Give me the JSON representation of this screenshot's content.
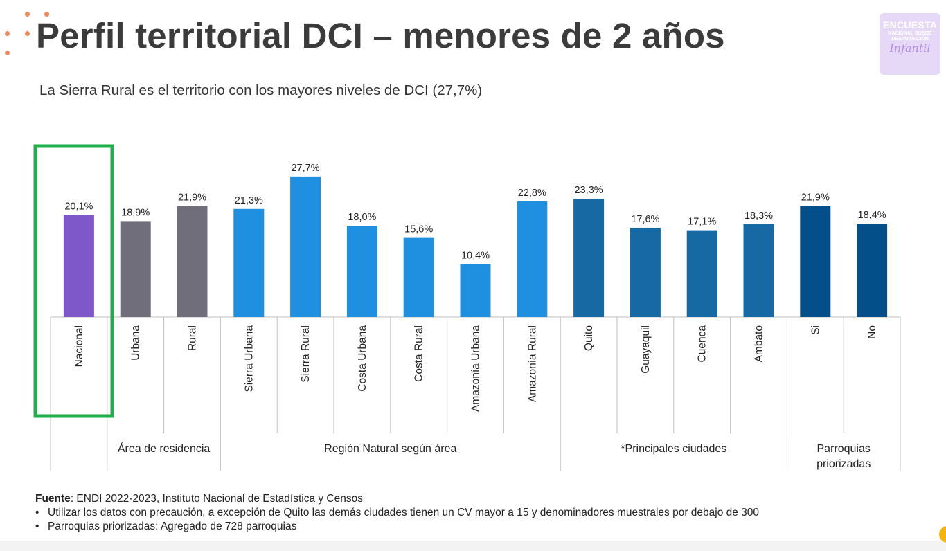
{
  "page": {
    "title": "Perfil territorial DCI – menores de 2 años",
    "subtitle": "La Sierra Rural es el territorio con los mayores niveles de DCI (27,7%)"
  },
  "logo": {
    "line1": "ENCUESTA",
    "line2": "NACIONAL SOBRE",
    "line3": "DESNUTRICIÓN",
    "line4": "Infantil"
  },
  "colors": {
    "nacional": "#7e57c8",
    "residencia": "#6f6e7a",
    "region": "#1f8fdf",
    "ciudades": "#1769a3",
    "parroquias": "#044e8a",
    "highlight": "#1fae4b",
    "accent_dots": "#f08a5d"
  },
  "chart_data": {
    "type": "bar",
    "categories": [
      "Nacional",
      "Urbana",
      "Rural",
      "Sierra Urbana",
      "Sierra Rural",
      "Costa Urbana",
      "Costa Rural",
      "Amazonía Urbana",
      "Amazonía Rural",
      "Quito",
      "Guayaquil",
      "Cuenca",
      "Ambato",
      "Si",
      "No"
    ],
    "values": [
      20.1,
      18.9,
      21.9,
      21.3,
      27.7,
      18.0,
      15.6,
      10.4,
      22.8,
      23.3,
      17.6,
      17.1,
      18.3,
      21.9,
      18.4
    ],
    "labels": [
      "20,1%",
      "18,9%",
      "21,9%",
      "21,3%",
      "27,7%",
      "18,0%",
      "15,6%",
      "10,4%",
      "22,8%",
      "23,3%",
      "17,6%",
      "17,1%",
      "18,3%",
      "21,9%",
      "18,4%"
    ],
    "groups": [
      {
        "label": "",
        "start": 0,
        "end": 0,
        "color_key": "nacional"
      },
      {
        "label": "Área de residencia",
        "start": 1,
        "end": 2,
        "color_key": "residencia"
      },
      {
        "label": "Región Natural según área",
        "start": 3,
        "end": 8,
        "color_key": "region"
      },
      {
        "label": "*Principales ciudades",
        "start": 9,
        "end": 12,
        "color_key": "ciudades"
      },
      {
        "label": "Parroquias priorizadas",
        "start": 13,
        "end": 14,
        "color_key": "parroquias"
      }
    ],
    "highlighted_category": "Nacional",
    "ylim": [
      0,
      30
    ],
    "grid": false,
    "legend": "none"
  },
  "footer": {
    "source_label": "Fuente",
    "source_text": ": ENDI 2022-2023, Instituto Nacional de Estadística y Censos",
    "notes": [
      "Utilizar los datos con precaución, a excepción de Quito las demás ciudades tienen un CV mayor a 15 y denominadores muestrales por debajo de 300",
      "Parroquias priorizadas: Agregado de 728 parroquias"
    ],
    "bullet": "•"
  }
}
